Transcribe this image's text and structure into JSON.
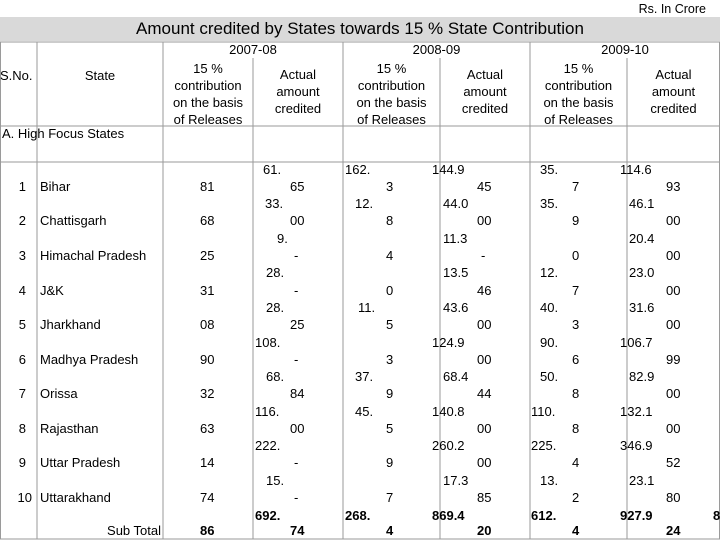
{
  "unit": "Rs. In Crore",
  "title": "Amount credited by States towards 15 % State Contribution",
  "years": [
    "2007-08",
    "2008-09",
    "2009-10"
  ],
  "columns": {
    "sno": "S.No.",
    "state": "State",
    "contribution_l1": "15 %",
    "contribution_l2": "contribution",
    "contribution_l3": "on the basis",
    "contribution_l4": "of Releases",
    "actual_l1": "Actual",
    "actual_l2": "amount",
    "actual_l3": "credited"
  },
  "section": "A. High Focus States",
  "rows": [
    {
      "sno": "1",
      "state": "Bihar",
      "c07": "81",
      "a07": [
        "61.",
        "65"
      ],
      "c08": [
        "162.",
        "3"
      ],
      "a08": [
        "144.9",
        "45"
      ],
      "c09": [
        "35.",
        "7"
      ],
      "a09": [
        "114.6",
        "93"
      ]
    },
    {
      "sno": "2",
      "state": "Chattisgarh",
      "c07": "68",
      "a07": [
        "33.",
        "00"
      ],
      "c08": [
        "12.",
        "8"
      ],
      "a08": [
        "44.0",
        "00"
      ],
      "c09": [
        "35.",
        "9"
      ],
      "a09": [
        "46.1",
        "00"
      ]
    },
    {
      "sno": "3",
      "state": "Himachal Pradesh",
      "c07": "25",
      "a07": [
        "9.",
        "-"
      ],
      "c08": [
        "",
        "4"
      ],
      "a08": [
        "11.3",
        "-"
      ],
      "c09": [
        "",
        "0"
      ],
      "a09": [
        "20.4",
        "00"
      ]
    },
    {
      "sno": "4",
      "state": "J&K",
      "c07": "31",
      "a07": [
        "28.",
        "-"
      ],
      "c08": [
        "",
        "0"
      ],
      "a08": [
        "13.5",
        "46"
      ],
      "c09": [
        "12.",
        "7"
      ],
      "a09": [
        "23.0",
        "00"
      ]
    },
    {
      "sno": "5",
      "state": "Jharkhand",
      "c07": "08",
      "a07": [
        "28.",
        "25"
      ],
      "c08": [
        "11.",
        "5"
      ],
      "a08": [
        "43.6",
        "00"
      ],
      "c09": [
        "40.",
        "3"
      ],
      "a09": [
        "31.6",
        "00"
      ]
    },
    {
      "sno": "6",
      "state": "Madhya Pradesh",
      "c07": "90",
      "a07": [
        "108.",
        "-"
      ],
      "c08": [
        "",
        "3"
      ],
      "a08": [
        "124.9",
        "00"
      ],
      "c09": [
        "90.",
        "6"
      ],
      "a09": [
        "106.7",
        "99"
      ]
    },
    {
      "sno": "7",
      "state": "Orissa",
      "c07": "32",
      "a07": [
        "68.",
        "84"
      ],
      "c08": [
        "37.",
        "9"
      ],
      "a08": [
        "68.4",
        "44"
      ],
      "c09": [
        "50.",
        "8"
      ],
      "a09": [
        "82.9",
        "00"
      ]
    },
    {
      "sno": "8",
      "state": "Rajasthan",
      "c07": "63",
      "a07": [
        "116.",
        "00"
      ],
      "c08": [
        "45.",
        "5"
      ],
      "a08": [
        "140.8",
        "00"
      ],
      "c09": [
        "110.",
        "8"
      ],
      "a09": [
        "132.1",
        "00"
      ]
    },
    {
      "sno": "9",
      "state": "Uttar Pradesh",
      "c07": "14",
      "a07": [
        "222.",
        "-"
      ],
      "c08": [
        "",
        "9"
      ],
      "a08": [
        "260.2",
        "00"
      ],
      "c09": [
        "225.",
        "4"
      ],
      "a09": [
        "346.9",
        "52"
      ]
    },
    {
      "sno": "10",
      "state": "Uttarakhand",
      "c07": "74",
      "a07": [
        "15.",
        "-"
      ],
      "c08": [
        "",
        "7"
      ],
      "a08": [
        "17.3",
        "85"
      ],
      "c09": [
        "13.",
        "2"
      ],
      "a09": [
        "23.1",
        "80"
      ]
    }
  ],
  "subtotal": {
    "label": "Sub Total",
    "c07": "86",
    "a07": [
      "692.",
      "74"
    ],
    "c08": [
      "268.",
      "4"
    ],
    "a08": [
      "869.4",
      "20"
    ],
    "c09": [
      "612.",
      "4"
    ],
    "a09": [
      "927.9",
      "24"
    ]
  },
  "edge_char": "8"
}
